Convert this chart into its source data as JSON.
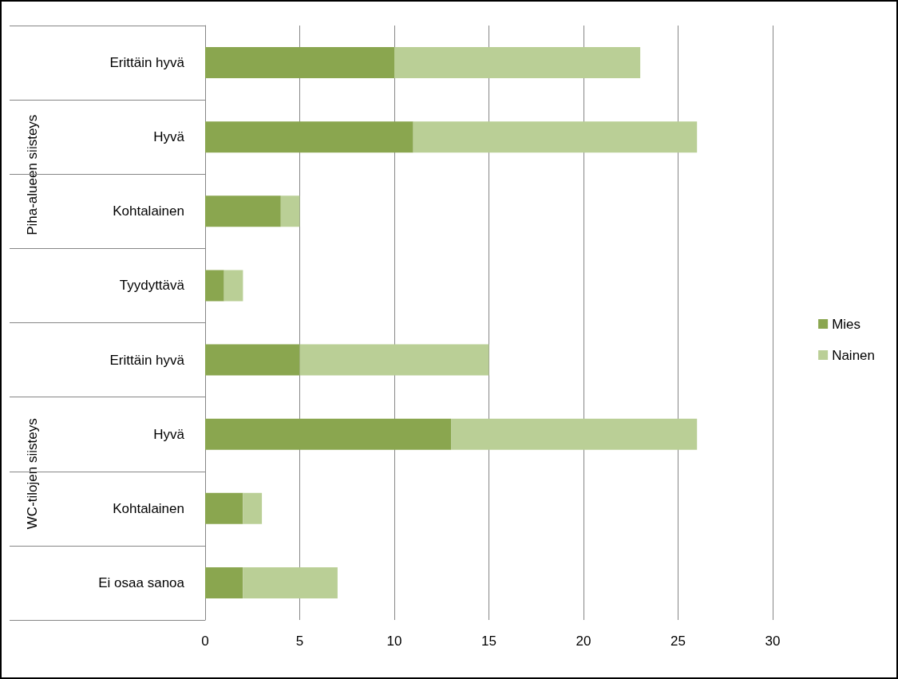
{
  "chart_data": {
    "type": "bar",
    "orientation": "horizontal",
    "stacked": true,
    "categories": [
      "Erittäin hyvä",
      "Hyvä",
      "Kohtalainen",
      "Tyydyttävä",
      "Erittäin hyvä",
      "Hyvä",
      "Kohtalainen",
      "Ei osaa sanoa"
    ],
    "series": [
      {
        "name": "Mies",
        "color": "#8aa64f",
        "values": [
          10,
          11,
          4,
          1,
          5,
          13,
          2,
          2
        ]
      },
      {
        "name": "Nainen",
        "color": "#bacf96",
        "values": [
          13,
          15,
          1,
          1,
          10,
          13,
          1,
          5
        ]
      }
    ],
    "annotations": [
      "Piha-alueen siisteys",
      "WC-tilojen siisteys"
    ],
    "xlim": [
      0,
      30
    ],
    "xticks": [
      0,
      5,
      10,
      15,
      20,
      25,
      30
    ],
    "grid": "x",
    "legend": "right"
  }
}
